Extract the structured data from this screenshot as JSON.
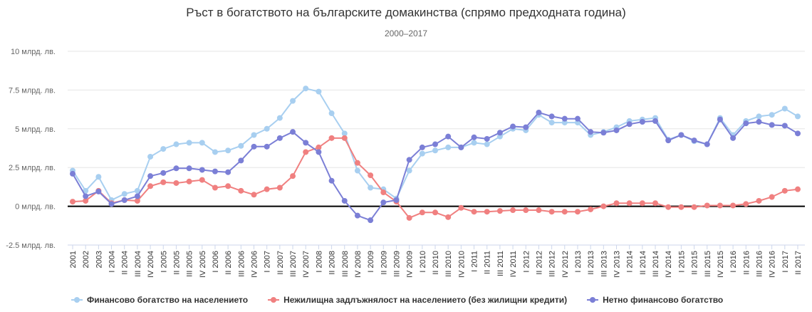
{
  "chart_data": {
    "type": "line",
    "title": "Ръст в богатството на българските домакинства (спрямо предходната година)",
    "subtitle": "2000–2017",
    "ylim": [
      -2.5,
      10
    ],
    "ytick_labels": [
      "10 млрд. лв.",
      "7.5 млрд. лв.",
      "5 млрд. лв.",
      "2.5 млрд. лв.",
      "0 млрд. лв.",
      "-2.5 млрд. лв."
    ],
    "ytick_values": [
      10,
      7.5,
      5,
      2.5,
      0,
      -2.5
    ],
    "grid": true,
    "legend_position": "bottom",
    "categories": [
      "2001",
      "2002",
      "2003",
      "I 2004",
      "II 2004",
      "III 2004",
      "IV 2004",
      "I 2005",
      "II 2005",
      "III 2005",
      "IV 2005",
      "I 2006",
      "II 2006",
      "III 2006",
      "IV 2006",
      "I 2007",
      "II 2007",
      "III 2007",
      "IV 2007",
      "I 2008",
      "II 2008",
      "III 2008",
      "IV 2008",
      "I 2009",
      "II 2009",
      "III 2009",
      "IV 2009",
      "I 2010",
      "II 2010",
      "III 2010",
      "IV 2010",
      "I 2011",
      "II 2011",
      "III 2011",
      "IV 2011",
      "I 2012",
      "II 2012",
      "III 2012",
      "IV 2012",
      "I 2013",
      "II 2013",
      "III 2013",
      "IV 2013",
      "I 2014",
      "II 2014",
      "III 2014",
      "IV 2014",
      "I 2015",
      "II 2015",
      "III 2015",
      "IV 2015",
      "I 2016",
      "II 2016",
      "III 2016",
      "IV 2016",
      "I 2017",
      "II 2017"
    ],
    "series": [
      {
        "name": "Финансово богатство на населението",
        "color": "#a8cff0",
        "values": [
          2.3,
          1.0,
          1.9,
          0.4,
          0.8,
          1.0,
          3.2,
          3.7,
          4.0,
          4.1,
          4.1,
          3.5,
          3.6,
          3.9,
          4.6,
          5.0,
          5.7,
          6.8,
          7.6,
          7.4,
          6.0,
          4.7,
          2.3,
          1.2,
          1.1,
          0.5,
          2.3,
          3.4,
          3.6,
          3.8,
          3.8,
          4.1,
          4.0,
          4.5,
          5.0,
          4.9,
          5.9,
          5.4,
          5.4,
          5.4,
          4.6,
          4.8,
          5.1,
          5.5,
          5.6,
          5.7,
          4.3,
          4.6,
          4.2,
          4.0,
          5.7,
          4.6,
          5.5,
          5.8,
          5.9,
          6.3,
          5.8
        ]
      },
      {
        "name": "Нежилищна задлъжнялост на населението (без жилищни кредити)",
        "color": "#f08080",
        "values": [
          0.3,
          0.35,
          1.0,
          0.2,
          0.4,
          0.35,
          1.3,
          1.55,
          1.5,
          1.6,
          1.7,
          1.2,
          1.3,
          1.0,
          0.75,
          1.1,
          1.2,
          1.95,
          3.5,
          3.8,
          4.4,
          4.4,
          2.8,
          2.0,
          0.9,
          0.3,
          -0.75,
          -0.4,
          -0.4,
          -0.7,
          -0.1,
          -0.35,
          -0.35,
          -0.3,
          -0.25,
          -0.25,
          -0.25,
          -0.35,
          -0.35,
          -0.35,
          -0.2,
          0.0,
          0.2,
          0.2,
          0.2,
          0.2,
          -0.05,
          -0.05,
          -0.05,
          0.05,
          0.05,
          0.05,
          0.15,
          0.35,
          0.6,
          1.0,
          1.1
        ]
      },
      {
        "name": "Нетно финансово богатство",
        "color": "#7b7fd6",
        "values": [
          2.1,
          0.65,
          0.95,
          0.15,
          0.4,
          0.65,
          1.95,
          2.15,
          2.45,
          2.45,
          2.35,
          2.25,
          2.2,
          2.95,
          3.85,
          3.85,
          4.4,
          4.8,
          4.1,
          3.5,
          1.65,
          0.35,
          -0.6,
          -0.9,
          0.25,
          0.4,
          3.0,
          3.8,
          4.0,
          4.5,
          3.8,
          4.45,
          4.35,
          4.75,
          5.15,
          5.1,
          6.05,
          5.8,
          5.65,
          5.65,
          4.8,
          4.75,
          4.9,
          5.3,
          5.45,
          5.5,
          4.25,
          4.6,
          4.25,
          4.0,
          5.6,
          4.4,
          5.35,
          5.45,
          5.25,
          5.2,
          4.7
        ]
      }
    ]
  }
}
